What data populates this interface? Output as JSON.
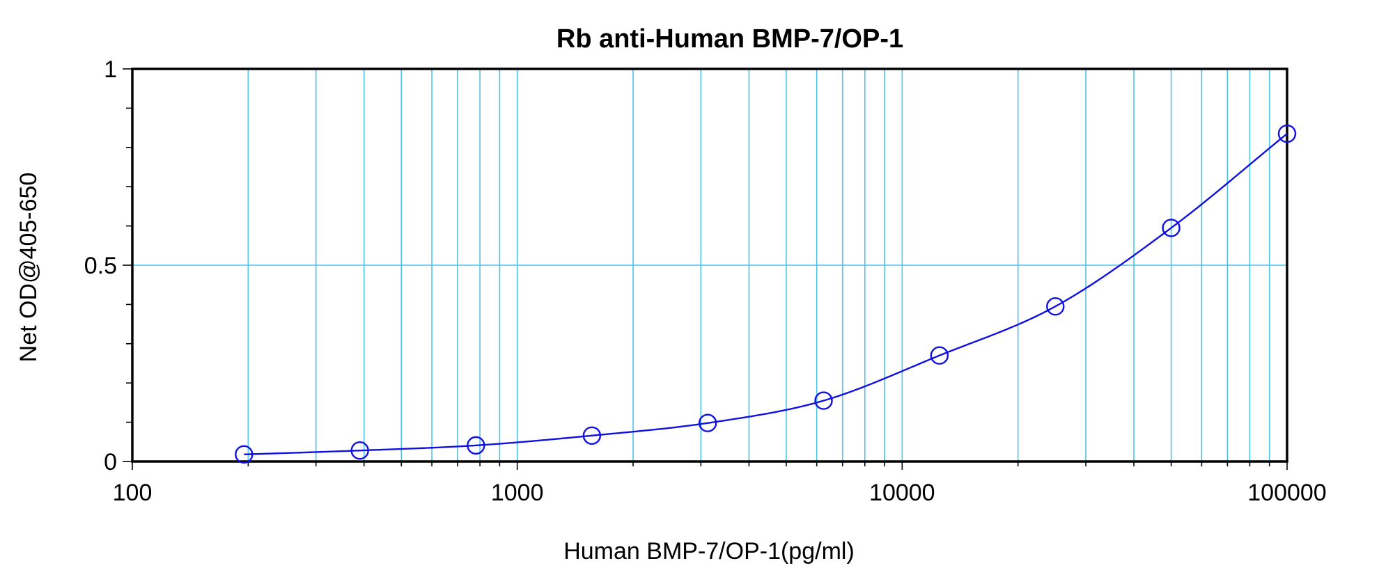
{
  "chart_data": {
    "type": "scatter",
    "title": "Rb anti-Human BMP-7/OP-1",
    "xlabel": "Human BMP-7/OP-1(pg/ml)",
    "ylabel": "Net OD@405-650",
    "xscale": "log",
    "xlim": [
      100,
      100000
    ],
    "ylim": [
      0,
      1
    ],
    "x_ticks": [
      100,
      1000,
      10000,
      100000
    ],
    "x_tick_labels": [
      "100",
      "1000",
      "10000",
      "100000"
    ],
    "y_ticks": [
      0,
      0.5,
      1
    ],
    "y_tick_labels": [
      "0",
      "0.5",
      "1"
    ],
    "grid": true,
    "colors": {
      "grid": "#4fc3e8",
      "series": "#1010e0",
      "axes": "#000000"
    },
    "series": [
      {
        "marker": "open-circle",
        "x": [
          195,
          390,
          781,
          1563,
          3125,
          6250,
          12500,
          25000,
          50000,
          100000
        ],
        "y": [
          0.018,
          0.028,
          0.041,
          0.066,
          0.098,
          0.155,
          0.27,
          0.395,
          0.595,
          0.835
        ],
        "fit": "smooth-curve"
      }
    ]
  }
}
